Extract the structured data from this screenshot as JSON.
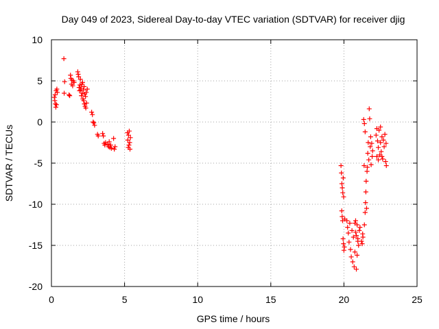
{
  "chart_data": {
    "type": "scatter",
    "title": "Day 049 of 2023, Sidereal Day-to-day VTEC variation (SDTVAR) for receiver djig",
    "xlabel": "GPS time / hours",
    "ylabel": "SDTVAR / TECUs",
    "xlim": [
      0,
      25
    ],
    "ylim": [
      -20,
      10
    ],
    "xticks": [
      "0",
      "5",
      "10",
      "15",
      "20",
      "25"
    ],
    "yticks": [
      "10",
      "5",
      "0",
      "-5",
      "-10",
      "-15",
      "-20"
    ],
    "xtick_values": [
      0,
      5,
      10,
      15,
      20,
      25
    ],
    "ytick_values": [
      10,
      5,
      0,
      -5,
      -10,
      -15,
      -20
    ],
    "grid": true,
    "marker": "plus",
    "color": "#ff0000",
    "series": [
      {
        "name": "SDTVAR",
        "points": [
          [
            0.2,
            3.0
          ],
          [
            0.23,
            2.6
          ],
          [
            0.25,
            3.3
          ],
          [
            0.27,
            2.2
          ],
          [
            0.3,
            1.8
          ],
          [
            0.32,
            3.8
          ],
          [
            0.35,
            2.1
          ],
          [
            0.37,
            4.0
          ],
          [
            0.4,
            3.6
          ],
          [
            0.85,
            7.7
          ],
          [
            0.87,
            3.5
          ],
          [
            0.9,
            4.9
          ],
          [
            1.2,
            3.3
          ],
          [
            1.25,
            3.2
          ],
          [
            1.3,
            5.7
          ],
          [
            1.33,
            5.3
          ],
          [
            1.37,
            4.6
          ],
          [
            1.4,
            5.1
          ],
          [
            1.45,
            4.4
          ],
          [
            1.5,
            5.0
          ],
          [
            1.55,
            4.8
          ],
          [
            1.8,
            6.1
          ],
          [
            1.83,
            5.8
          ],
          [
            1.86,
            5.5
          ],
          [
            1.89,
            4.2
          ],
          [
            1.92,
            3.8
          ],
          [
            1.95,
            4.5
          ],
          [
            1.98,
            5.2
          ],
          [
            2.0,
            3.9
          ],
          [
            2.03,
            4.1
          ],
          [
            2.05,
            3.2
          ],
          [
            2.08,
            4.6
          ],
          [
            2.1,
            3.5
          ],
          [
            2.13,
            4.8
          ],
          [
            2.15,
            2.8
          ],
          [
            2.18,
            3.9
          ],
          [
            2.2,
            2.6
          ],
          [
            2.23,
            4.3
          ],
          [
            2.25,
            2.2
          ],
          [
            2.28,
            3.4
          ],
          [
            2.3,
            1.9
          ],
          [
            2.33,
            3.1
          ],
          [
            2.35,
            1.7
          ],
          [
            2.38,
            3.6
          ],
          [
            2.4,
            2.3
          ],
          [
            2.45,
            4.0
          ],
          [
            2.75,
            1.2
          ],
          [
            2.8,
            0.9
          ],
          [
            2.85,
            0.0
          ],
          [
            2.9,
            -0.1
          ],
          [
            2.95,
            -0.4
          ],
          [
            3.15,
            -1.5
          ],
          [
            3.2,
            -1.7
          ],
          [
            3.5,
            -1.4
          ],
          [
            3.55,
            -1.7
          ],
          [
            3.6,
            -2.6
          ],
          [
            3.65,
            -2.8
          ],
          [
            3.7,
            -2.5
          ],
          [
            3.85,
            -2.7
          ],
          [
            3.9,
            -3.0
          ],
          [
            3.95,
            -2.4
          ],
          [
            4.0,
            -3.1
          ],
          [
            4.05,
            -2.8
          ],
          [
            4.1,
            -3.2
          ],
          [
            4.25,
            -2.0
          ],
          [
            4.3,
            -3.3
          ],
          [
            4.35,
            -3.0
          ],
          [
            5.2,
            -1.3
          ],
          [
            5.22,
            -2.2
          ],
          [
            5.25,
            -3.1
          ],
          [
            5.27,
            -1.6
          ],
          [
            5.3,
            -2.8
          ],
          [
            5.32,
            -1.1
          ],
          [
            5.35,
            -2.5
          ],
          [
            5.37,
            -3.3
          ],
          [
            5.4,
            -1.9
          ],
          [
            19.8,
            -5.3
          ],
          [
            19.83,
            -6.2
          ],
          [
            19.86,
            -7.5
          ],
          [
            19.89,
            -8.0
          ],
          [
            19.92,
            -8.6
          ],
          [
            19.95,
            -6.8
          ],
          [
            19.98,
            -9.1
          ],
          [
            19.85,
            -10.8
          ],
          [
            19.88,
            -11.5
          ],
          [
            19.91,
            -12.0
          ],
          [
            19.94,
            -14.2
          ],
          [
            19.97,
            -14.8
          ],
          [
            20.0,
            -15.6
          ],
          [
            20.03,
            -15.2
          ],
          [
            20.06,
            -11.8
          ],
          [
            20.2,
            -12.0
          ],
          [
            20.25,
            -12.8
          ],
          [
            20.3,
            -13.5
          ],
          [
            20.35,
            -14.6
          ],
          [
            20.4,
            -12.3
          ],
          [
            20.45,
            -15.5
          ],
          [
            20.5,
            -16.4
          ],
          [
            20.55,
            -13.2
          ],
          [
            20.6,
            -17.0
          ],
          [
            20.65,
            -14.0
          ],
          [
            20.7,
            -17.6
          ],
          [
            20.75,
            -15.8
          ],
          [
            20.8,
            -13.4
          ],
          [
            20.85,
            -17.9
          ],
          [
            20.9,
            -16.2
          ],
          [
            20.95,
            -14.5
          ],
          [
            21.0,
            -15.0
          ],
          [
            21.05,
            -13.2
          ],
          [
            21.1,
            -12.8
          ],
          [
            20.75,
            -12.3
          ],
          [
            20.8,
            -12.0
          ],
          [
            20.85,
            -13.8
          ],
          [
            20.9,
            -12.5
          ],
          [
            20.95,
            -14.2
          ],
          [
            21.2,
            -14.5
          ],
          [
            21.25,
            -14.8
          ],
          [
            21.28,
            -13.6
          ],
          [
            21.3,
            -14.0
          ],
          [
            21.4,
            -12.5
          ],
          [
            21.45,
            -11.0
          ],
          [
            21.48,
            -9.8
          ],
          [
            21.5,
            -8.5
          ],
          [
            21.52,
            -7.2
          ],
          [
            21.55,
            -10.5
          ],
          [
            21.58,
            -6.0
          ],
          [
            21.6,
            -5.5
          ],
          [
            21.63,
            -3.8
          ],
          [
            21.66,
            -2.5
          ],
          [
            21.7,
            -4.6
          ],
          [
            21.73,
            1.6
          ],
          [
            21.76,
            0.4
          ],
          [
            21.8,
            -3.0
          ],
          [
            21.83,
            -1.8
          ],
          [
            21.86,
            -5.2
          ],
          [
            21.9,
            -2.6
          ],
          [
            21.93,
            -4.2
          ],
          [
            21.96,
            -3.5
          ],
          [
            21.35,
            0.3
          ],
          [
            21.4,
            -0.2
          ],
          [
            21.45,
            -1.2
          ],
          [
            21.38,
            -5.3
          ],
          [
            22.2,
            -1.6
          ],
          [
            22.25,
            -0.8
          ],
          [
            22.3,
            -2.3
          ],
          [
            22.35,
            -3.1
          ],
          [
            22.4,
            -1.0
          ],
          [
            22.45,
            -4.0
          ],
          [
            22.5,
            -2.5
          ],
          [
            22.55,
            -3.6
          ],
          [
            22.6,
            -1.8
          ],
          [
            22.65,
            -4.5
          ],
          [
            22.7,
            -2.2
          ],
          [
            22.75,
            -3.0
          ],
          [
            22.8,
            -1.5
          ],
          [
            22.85,
            -4.8
          ],
          [
            22.88,
            -2.6
          ],
          [
            22.9,
            -5.3
          ],
          [
            22.25,
            -4.2
          ],
          [
            22.35,
            -4.6
          ],
          [
            22.5,
            -0.6
          ],
          [
            22.6,
            -4.2
          ]
        ]
      }
    ]
  }
}
